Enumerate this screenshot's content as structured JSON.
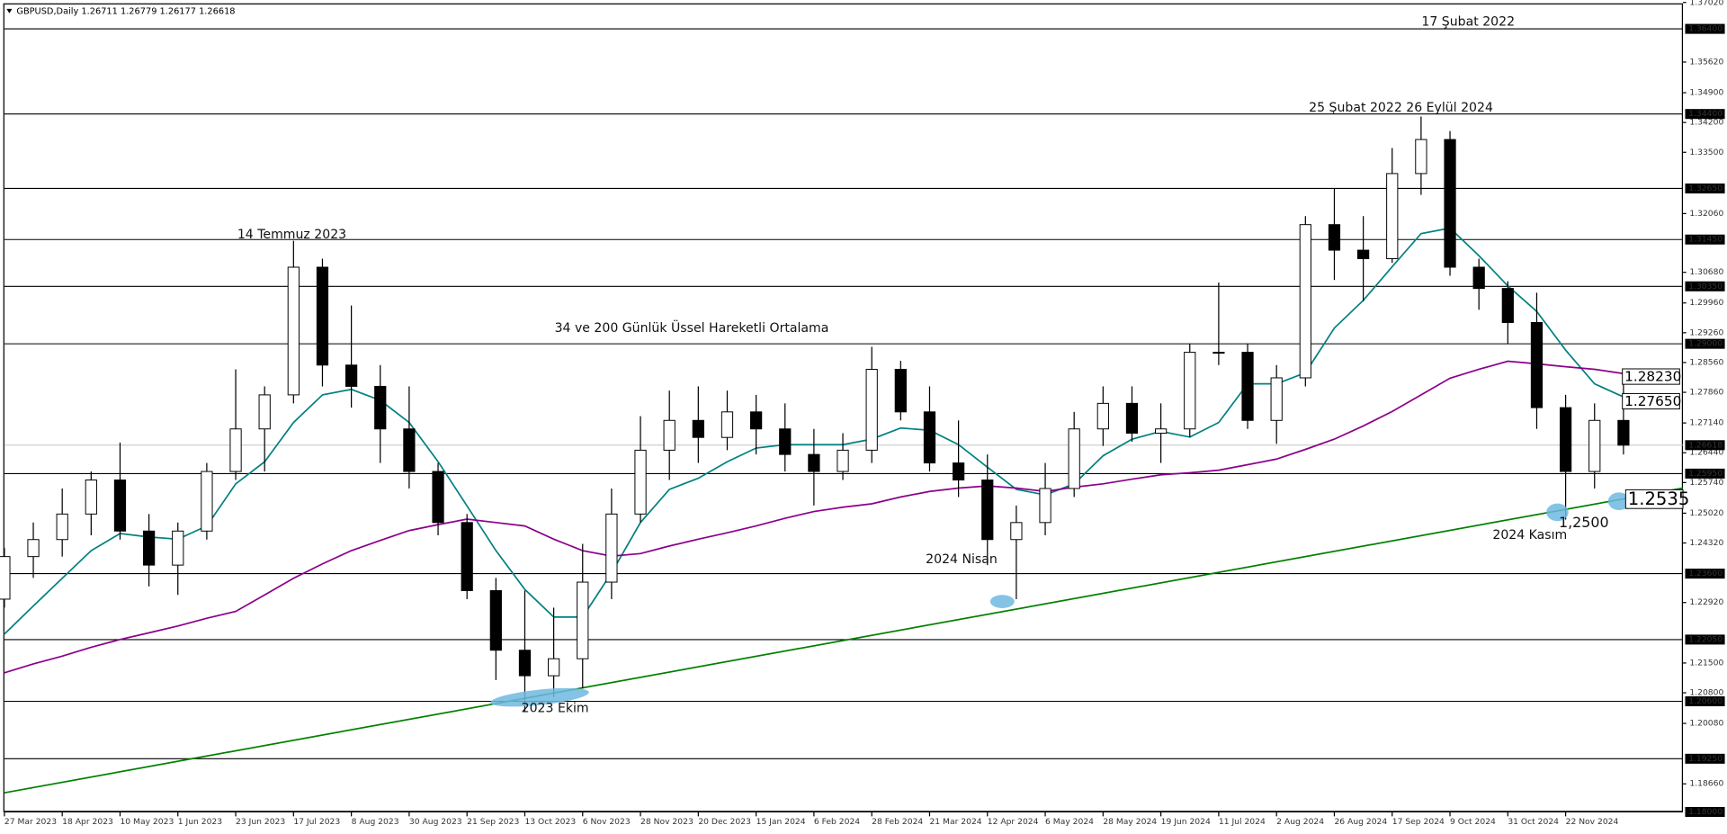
{
  "chart_data": {
    "type": "candlestick",
    "info": "GBPUSD,Daily  1.26711 1.26779 1.26177 1.26618",
    "categories": [
      "27 Mar 2023",
      null,
      "18 Apr 2023",
      null,
      "10 May 2023",
      null,
      "1 Jun 2023",
      null,
      "23 Jun 2023",
      null,
      "17 Jul 2023",
      null,
      "8 Aug 2023",
      null,
      "30 Aug 2023",
      null,
      "21 Sep 2023",
      null,
      "13 Oct 2023",
      null,
      "6 Nov 2023",
      null,
      "28 Nov 2023",
      null,
      "20 Dec 2023",
      null,
      "15 Jan 2024",
      null,
      "6 Feb 2024",
      null,
      "28 Feb 2024",
      null,
      "21 Mar 2024",
      null,
      "12 Apr 2024",
      null,
      "6 May 2024",
      null,
      "28 May 2024",
      null,
      "19 Jun 2024",
      null,
      "11 Jul 2024",
      null,
      "2 Aug 2024",
      null,
      "26 Aug 2024",
      null,
      "17 Sep 2024",
      null,
      "9 Oct 2024",
      null,
      "31 Oct 2024",
      null,
      "22 Nov 2024",
      null,
      null
    ],
    "candles": {
      "open": [
        1.23,
        1.24,
        1.244,
        1.25,
        1.258,
        1.246,
        1.238,
        1.246,
        1.26,
        1.27,
        1.278,
        1.308,
        1.285,
        1.28,
        1.27,
        1.26,
        1.248,
        1.232,
        1.218,
        1.212,
        1.216,
        1.234,
        1.25,
        1.265,
        1.272,
        1.268,
        1.274,
        1.27,
        1.264,
        1.26,
        1.265,
        1.284,
        1.274,
        1.262,
        1.258,
        1.244,
        1.248,
        1.256,
        1.27,
        1.276,
        1.269,
        1.27,
        1.288,
        1.288,
        1.272,
        1.282,
        1.318,
        1.312,
        1.31,
        1.33,
        1.338,
        1.308,
        1.303,
        1.295,
        1.275,
        1.26,
        1.272
      ],
      "high": [
        1.242,
        1.248,
        1.256,
        1.26,
        1.2668,
        1.25,
        1.248,
        1.262,
        1.284,
        1.28,
        1.3142,
        1.31,
        1.299,
        1.285,
        1.28,
        1.262,
        1.25,
        1.235,
        1.232,
        1.228,
        1.243,
        1.256,
        1.273,
        1.279,
        1.28,
        1.279,
        1.278,
        1.276,
        1.27,
        1.269,
        1.2893,
        1.286,
        1.28,
        1.272,
        1.264,
        1.252,
        1.262,
        1.274,
        1.28,
        1.28,
        1.276,
        1.29,
        1.3044,
        1.29,
        1.285,
        1.32,
        1.3266,
        1.32,
        1.336,
        1.3434,
        1.34,
        1.31,
        1.3047,
        1.302,
        1.278,
        1.276,
        1.281
      ],
      "low": [
        1.228,
        1.235,
        1.24,
        1.245,
        1.244,
        1.233,
        1.231,
        1.244,
        1.258,
        1.26,
        1.276,
        1.28,
        1.275,
        1.262,
        1.256,
        1.245,
        1.23,
        1.211,
        1.2037,
        1.207,
        1.209,
        1.23,
        1.248,
        1.258,
        1.262,
        1.265,
        1.264,
        1.26,
        1.252,
        1.258,
        1.262,
        1.272,
        1.26,
        1.254,
        1.238,
        1.23,
        1.245,
        1.254,
        1.266,
        1.267,
        1.262,
        1.268,
        1.285,
        1.27,
        1.2665,
        1.28,
        1.305,
        1.3,
        1.309,
        1.325,
        1.306,
        1.298,
        1.29,
        1.27,
        1.2487,
        1.256,
        1.264
      ],
      "close": [
        1.24,
        1.244,
        1.25,
        1.258,
        1.246,
        1.238,
        1.246,
        1.26,
        1.27,
        1.278,
        1.308,
        1.285,
        1.28,
        1.27,
        1.26,
        1.248,
        1.232,
        1.218,
        1.212,
        1.216,
        1.234,
        1.25,
        1.265,
        1.272,
        1.268,
        1.274,
        1.27,
        1.264,
        1.26,
        1.265,
        1.284,
        1.274,
        1.262,
        1.258,
        1.244,
        1.248,
        1.256,
        1.27,
        1.276,
        1.269,
        1.27,
        1.288,
        1.288,
        1.272,
        1.282,
        1.318,
        1.312,
        1.31,
        1.33,
        1.338,
        1.308,
        1.303,
        1.295,
        1.275,
        1.26,
        1.272,
        1.26618
      ]
    },
    "series": [
      {
        "color": "#008080",
        "values": [
          1.2218,
          1.2284,
          1.2349,
          1.2414,
          1.2454,
          1.2446,
          1.2441,
          1.2472,
          1.2571,
          1.2623,
          1.2715,
          1.278,
          1.2793,
          1.2767,
          1.2715,
          1.2623,
          1.2519,
          1.2414,
          1.2323,
          1.2258,
          1.2258,
          1.2362,
          1.248,
          1.2558,
          1.2584,
          1.2623,
          1.2655,
          1.2663,
          1.2663,
          1.2663,
          1.2676,
          1.2702,
          1.2697,
          1.2663,
          1.261,
          1.2558,
          1.2545,
          1.2571,
          1.2637,
          1.2676,
          1.2694,
          1.2681,
          1.2715,
          1.2806,
          1.2806,
          1.2832,
          1.2937,
          1.3002,
          1.3081,
          1.3159,
          1.3172,
          1.3107,
          1.3036,
          1.2976,
          1.2885,
          1.2806,
          1.2775
        ]
      },
      {
        "color": "#8b008b",
        "values": [
          1.2127,
          1.2148,
          1.2166,
          1.2187,
          1.2205,
          1.2221,
          1.2237,
          1.2255,
          1.2271,
          1.231,
          1.2349,
          1.2383,
          1.2414,
          1.2438,
          1.2461,
          1.2475,
          1.2488,
          1.248,
          1.2472,
          1.2441,
          1.2414,
          1.2401,
          1.2407,
          1.2425,
          1.2441,
          1.2456,
          1.2472,
          1.249,
          1.2506,
          1.2516,
          1.2524,
          1.254,
          1.2553,
          1.2561,
          1.2566,
          1.2561,
          1.2553,
          1.2563,
          1.2571,
          1.2582,
          1.2592,
          1.2597,
          1.2603,
          1.2616,
          1.2629,
          1.2652,
          1.2676,
          1.2707,
          1.2741,
          1.278,
          1.2819,
          1.284,
          1.2859,
          1.2853,
          1.2846,
          1.284,
          1.283
        ]
      }
    ],
    "trend_line": {
      "color": "#008000",
      "values": [
        1.1845,
        1.2561
      ]
    },
    "ylim": [
      1.18,
      1.37
    ],
    "yticks": [
      {
        "value": 1.3702,
        "label": "1.37020"
      },
      {
        "value": 1.3562,
        "label": "1.35620"
      },
      {
        "value": 1.349,
        "label": "1.34900"
      },
      {
        "value": 1.342,
        "label": "1.34200"
      },
      {
        "value": 1.335,
        "label": "1.33500"
      },
      {
        "value": 1.3206,
        "label": "1.32060"
      },
      {
        "value": 1.3068,
        "label": "1.30680"
      },
      {
        "value": 1.2996,
        "label": "1.29960"
      },
      {
        "value": 1.2926,
        "label": "1.29260"
      },
      {
        "value": 1.2856,
        "label": "1.28560"
      },
      {
        "value": 1.2786,
        "label": "1.27860"
      },
      {
        "value": 1.2714,
        "label": "1.27140"
      },
      {
        "value": 1.2644,
        "label": "1.26440"
      },
      {
        "value": 1.2574,
        "label": "1.25740"
      },
      {
        "value": 1.2502,
        "label": "1.25020"
      },
      {
        "value": 1.2432,
        "label": "1.24320"
      },
      {
        "value": 1.2292,
        "label": "1.22920"
      },
      {
        "value": 1.215,
        "label": "1.21500"
      },
      {
        "value": 1.208,
        "label": "1.20800"
      },
      {
        "value": 1.2008,
        "label": "1.20080"
      },
      {
        "value": 1.1866,
        "label": "1.18660"
      }
    ],
    "levels": [
      {
        "value": 1.364,
        "label": "1.36400"
      },
      {
        "value": 1.344,
        "label": "1.34400"
      },
      {
        "value": 1.3265,
        "label": "1.32650"
      },
      {
        "value": 1.3145,
        "label": "1.31450"
      },
      {
        "value": 1.3035,
        "label": "1.30350"
      },
      {
        "value": 1.29,
        "label": "1.29000"
      },
      {
        "value": 1.2595,
        "label": "1.25950"
      },
      {
        "value": 1.236,
        "label": "1.23600"
      },
      {
        "value": 1.2205,
        "label": "1.22050"
      },
      {
        "value": 1.206,
        "label": "1.20600"
      },
      {
        "value": 1.1925,
        "label": "1.19250"
      },
      {
        "value": 1.18,
        "label": "1.18000"
      }
    ],
    "current_price": {
      "value": 1.26618,
      "label": "1.26618"
    },
    "price_labels": [
      {
        "value": 1.2823,
        "label": "1.28230"
      },
      {
        "value": 1.2765,
        "label": "1.27650"
      },
      {
        "value": 1.2535,
        "label": "1.2535"
      }
    ],
    "annotations": [
      "17 Şubat 2022",
      "25 Şubat 2022  26 Eylül 2024",
      "14 Temmuz 2023",
      "34 ve 200 Günlük Üssel Hareketli Ortalama",
      "2024 Nisan",
      "2023 Ekim",
      "2024 Kasım",
      "1,2500"
    ]
  }
}
